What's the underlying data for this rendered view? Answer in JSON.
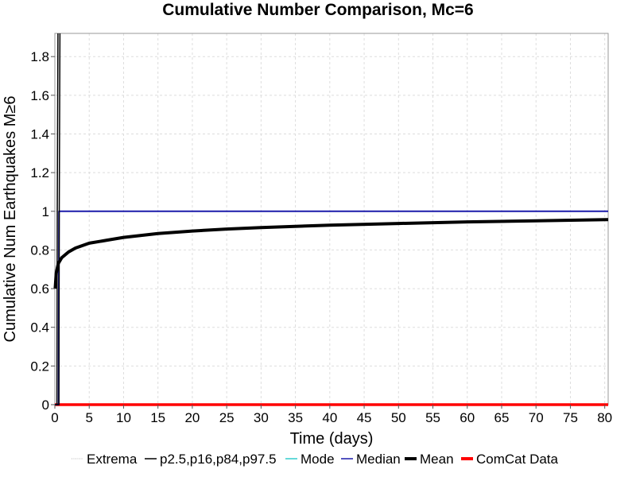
{
  "chart_data": {
    "type": "line",
    "title": "Cumulative Number Comparison, Mc=6",
    "xlabel": "Time (days)",
    "ylabel": "Cumulative Num Earthquakes M≥6",
    "xlim": [
      0,
      80.5
    ],
    "ylim": [
      0,
      1.92
    ],
    "xticks": [
      0,
      5,
      10,
      15,
      20,
      25,
      30,
      35,
      40,
      45,
      50,
      55,
      60,
      65,
      70,
      75,
      80
    ],
    "yticks": [
      0,
      0.2,
      0.4,
      0.6,
      0.8,
      1,
      1.2,
      1.4,
      1.6,
      1.8
    ],
    "ytick_labels": [
      "0",
      "0.2",
      "0.4",
      "0.6",
      "0.8",
      "1",
      "1.2",
      "1.4",
      "1.6",
      "1.8"
    ],
    "grid": true,
    "legend_position": "bottom",
    "legend": [
      {
        "name": "Extrema",
        "color": "#b0b0b0",
        "style": "dotted"
      },
      {
        "name": "p2.5,p16,p84,p97.5",
        "color": "#000000",
        "style": "solid"
      },
      {
        "name": "Mode",
        "color": "#33cccc",
        "style": "solid"
      },
      {
        "name": "Median",
        "color": "#1a1aaa",
        "style": "solid"
      },
      {
        "name": "Mean",
        "color": "#000000",
        "style": "thick"
      },
      {
        "name": "ComCat Data",
        "color": "#ff0000",
        "style": "thick"
      }
    ],
    "series": [
      {
        "name": "p2.5,p16,p84,p97.5",
        "color": "#000000",
        "x": [
          0,
          0.3,
          0.35,
          0.45
        ],
        "y": [
          0,
          0,
          1.0,
          1.92
        ]
      },
      {
        "name": "Median",
        "color": "#1a1aaa",
        "x": [
          0,
          0.55,
          0.6,
          80.5
        ],
        "y": [
          0,
          0,
          1.0,
          1.0
        ]
      },
      {
        "name": "Mean",
        "color": "#000000",
        "x": [
          0.05,
          0.2,
          0.5,
          1,
          2,
          3,
          5,
          7.5,
          10,
          15,
          20,
          25,
          30,
          40,
          50,
          60,
          70,
          80.5
        ],
        "y": [
          0.6,
          0.68,
          0.73,
          0.76,
          0.79,
          0.81,
          0.835,
          0.85,
          0.865,
          0.885,
          0.898,
          0.908,
          0.916,
          0.928,
          0.937,
          0.945,
          0.951,
          0.957
        ]
      },
      {
        "name": "ComCat Data",
        "color": "#ff0000",
        "x": [
          0,
          80.5
        ],
        "y": [
          0,
          0
        ]
      }
    ]
  }
}
